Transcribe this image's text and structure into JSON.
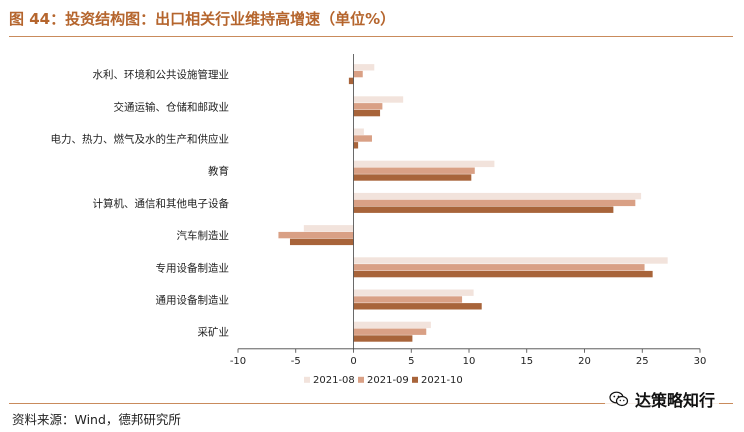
{
  "figure": {
    "title": "图 44：投资结构图：出口相关行业维持高增速（单位%）",
    "source": "资料来源：Wind，德邦研究所",
    "watermark": "达策略知行",
    "watermark_icon": "wechat-icon"
  },
  "colors": {
    "accent": "#b5652d",
    "rule": "#c98b5c",
    "series": [
      "#f2e3dc",
      "#d9a085",
      "#a8643a"
    ]
  },
  "chart_data": {
    "type": "bar",
    "orientation": "horizontal",
    "title": "",
    "xlabel": "",
    "ylabel": "",
    "xlim": [
      -10,
      30
    ],
    "xticks": [
      -10,
      -5,
      0,
      5,
      10,
      15,
      20,
      25,
      30
    ],
    "grid": false,
    "legend_position": "bottom",
    "categories": [
      "水利、环境和公共设施管理业",
      "交通运输、仓储和邮政业",
      "电力、热力、燃气及水的生产和供应业",
      "教育",
      "计算机、通信和其他电子设备",
      "汽车制造业",
      "专用设备制造业",
      "通用设备制造业",
      "采矿业"
    ],
    "series": [
      {
        "name": "2021-08",
        "values": [
          1.8,
          4.3,
          0.9,
          12.2,
          24.9,
          -4.3,
          27.2,
          10.4,
          6.7
        ]
      },
      {
        "name": "2021-09",
        "values": [
          0.8,
          2.5,
          1.6,
          10.5,
          24.4,
          -6.5,
          25.2,
          9.4,
          6.3
        ]
      },
      {
        "name": "2021-10",
        "values": [
          -0.4,
          2.3,
          0.4,
          10.2,
          22.5,
          -5.5,
          25.9,
          11.1,
          5.1
        ]
      }
    ]
  }
}
